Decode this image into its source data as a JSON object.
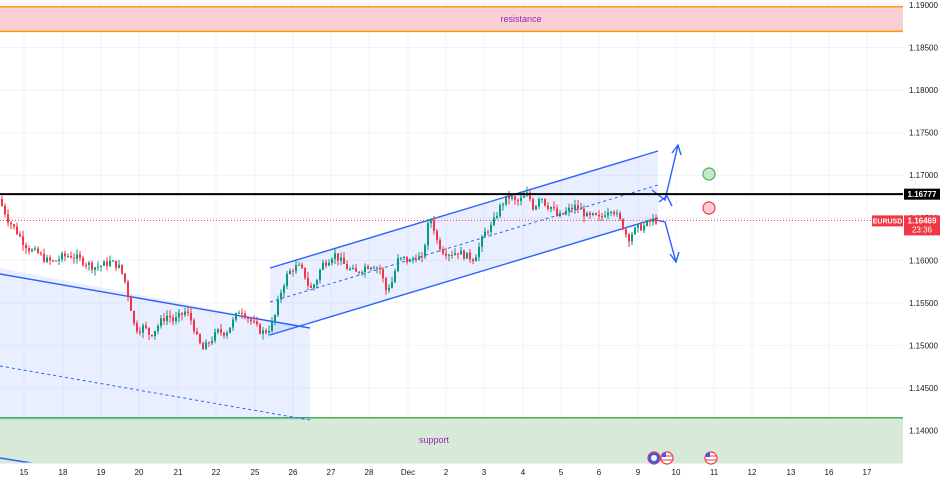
{
  "symbol": "EURUSD",
  "current_price": "1.16469",
  "countdown": "23:36",
  "key_level": "1.16777",
  "zones": {
    "resistance": {
      "label": "resistance",
      "from": 1.1869,
      "to": 1.1898
    },
    "support": {
      "label": "support",
      "from": 1.1363,
      "to": 1.1415
    }
  },
  "colors": {
    "up": "#089981",
    "down": "#f23645",
    "channel": "#2962ff",
    "resistance_fill": "#f8d0d6",
    "resistance_border": "#ff9800",
    "support_fill": "#d6ead7",
    "support_border": "#4caf50",
    "label_text": "#9c27b0",
    "key_line": "#000000"
  },
  "chart_data": {
    "type": "candlestick",
    "y_ticks": [
      "1.19000",
      "1.18500",
      "1.18000",
      "1.17500",
      "1.17000",
      "1.16500",
      "1.16000",
      "1.15500",
      "1.15000",
      "1.14500",
      "1.14000"
    ],
    "x_ticks": [
      "15",
      "18",
      "19",
      "20",
      "21",
      "22",
      "25",
      "26",
      "27",
      "28",
      "Dec",
      "2",
      "3",
      "4",
      "5",
      "6",
      "9",
      "10",
      "11",
      "12",
      "13",
      "16",
      "17"
    ],
    "ylim": [
      1.1357,
      1.1905
    ],
    "price_trace": [
      [
        0,
        1.1672
      ],
      [
        5,
        1.1662
      ],
      [
        10,
        1.1648
      ],
      [
        18,
        1.1635
      ],
      [
        25,
        1.1622
      ],
      [
        32,
        1.1612
      ],
      [
        40,
        1.1608
      ],
      [
        48,
        1.16
      ],
      [
        56,
        1.1598
      ],
      [
        64,
        1.1604
      ],
      [
        72,
        1.1606
      ],
      [
        80,
        1.1602
      ],
      [
        88,
        1.1597
      ],
      [
        96,
        1.1592
      ],
      [
        104,
        1.1594
      ],
      [
        112,
        1.1598
      ],
      [
        120,
        1.1594
      ],
      [
        126,
        1.158
      ],
      [
        132,
        1.155
      ],
      [
        136,
        1.1525
      ],
      [
        140,
        1.1518
      ],
      [
        146,
        1.1522
      ],
      [
        152,
        1.1512
      ],
      [
        158,
        1.152
      ],
      [
        164,
        1.153
      ],
      [
        170,
        1.1536
      ],
      [
        176,
        1.1528
      ],
      [
        182,
        1.1535
      ],
      [
        188,
        1.154
      ],
      [
        194,
        1.1528
      ],
      [
        200,
        1.1505
      ],
      [
        205,
        1.1495
      ],
      [
        212,
        1.1505
      ],
      [
        220,
        1.1516
      ],
      [
        228,
        1.1515
      ],
      [
        236,
        1.153
      ],
      [
        242,
        1.1543
      ],
      [
        246,
        1.1538
      ],
      [
        252,
        1.153
      ],
      [
        258,
        1.1522
      ],
      [
        264,
        1.1515
      ],
      [
        270,
        1.1518
      ],
      [
        276,
        1.153
      ],
      [
        282,
        1.156
      ],
      [
        288,
        1.158
      ],
      [
        294,
        1.159
      ],
      [
        300,
        1.1593
      ],
      [
        306,
        1.1585
      ],
      [
        312,
        1.1565
      ],
      [
        318,
        1.1575
      ],
      [
        324,
        1.1595
      ],
      [
        330,
        1.16
      ],
      [
        336,
        1.1608
      ],
      [
        342,
        1.16
      ],
      [
        350,
        1.159
      ],
      [
        358,
        1.1585
      ],
      [
        366,
        1.1592
      ],
      [
        374,
        1.1595
      ],
      [
        382,
        1.159
      ],
      [
        388,
        1.1565
      ],
      [
        394,
        1.1575
      ],
      [
        400,
        1.16
      ],
      [
        406,
        1.1602
      ],
      [
        412,
        1.1598
      ],
      [
        418,
        1.1605
      ],
      [
        424,
        1.16
      ],
      [
        430,
        1.164
      ],
      [
        434,
        1.165
      ],
      [
        438,
        1.1625
      ],
      [
        444,
        1.1612
      ],
      [
        452,
        1.1608
      ],
      [
        460,
        1.161
      ],
      [
        468,
        1.1605
      ],
      [
        476,
        1.1602
      ],
      [
        482,
        1.1618
      ],
      [
        488,
        1.1635
      ],
      [
        494,
        1.164
      ],
      [
        500,
        1.1658
      ],
      [
        506,
        1.167
      ],
      [
        512,
        1.1675
      ],
      [
        518,
        1.1668
      ],
      [
        524,
        1.1672
      ],
      [
        530,
        1.1678
      ],
      [
        536,
        1.166
      ],
      [
        542,
        1.1678
      ],
      [
        548,
        1.1665
      ],
      [
        554,
        1.1662
      ],
      [
        560,
        1.165
      ],
      [
        566,
        1.1655
      ],
      [
        572,
        1.166
      ],
      [
        578,
        1.1663
      ],
      [
        584,
        1.1658
      ],
      [
        590,
        1.165
      ],
      [
        596,
        1.1652
      ],
      [
        602,
        1.1648
      ],
      [
        608,
        1.1658
      ],
      [
        614,
        1.1662
      ],
      [
        620,
        1.165
      ],
      [
        626,
        1.1638
      ],
      [
        630,
        1.1625
      ],
      [
        634,
        1.1632
      ],
      [
        640,
        1.1638
      ],
      [
        646,
        1.164
      ],
      [
        652,
        1.1645
      ],
      [
        656,
        1.1647
      ]
    ]
  }
}
